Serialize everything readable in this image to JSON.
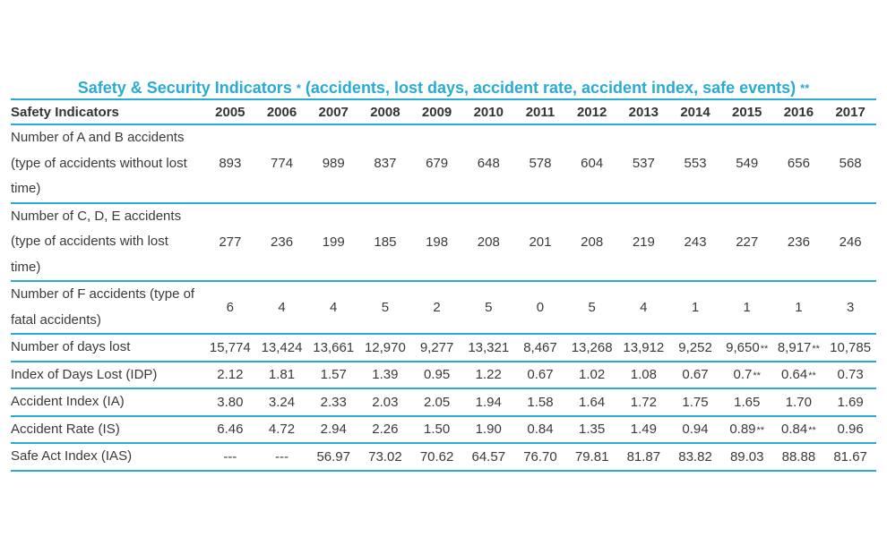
{
  "title": {
    "main": "Safety & Security Indicators",
    "star": "*",
    "sub": "(accidents, lost days, accident rate, accident index, safe events)",
    "stars": "**"
  },
  "table": {
    "header": [
      "Safety Indicators",
      "2005",
      "2006",
      "2007",
      "2008",
      "2009",
      "2010",
      "2011",
      "2012",
      "2013",
      "2014",
      "2015",
      "2016",
      "2017"
    ],
    "rows": [
      {
        "label": "Number of A and B accidents (type of accidents without lost time)",
        "values": [
          "893",
          "774",
          "989",
          "837",
          "679",
          "648",
          "578",
          "604",
          "537",
          "553",
          "549",
          "656",
          "568"
        ],
        "notes": [
          "",
          "",
          "",
          "",
          "",
          "",
          "",
          "",
          "",
          "",
          "",
          "",
          ""
        ]
      },
      {
        "label": "Number of C, D, E accidents (type of accidents with lost time)",
        "values": [
          "277",
          "236",
          "199",
          "185",
          "198",
          "208",
          "201",
          "208",
          "219",
          "243",
          "227",
          "236",
          "246"
        ],
        "notes": [
          "",
          "",
          "",
          "",
          "",
          "",
          "",
          "",
          "",
          "",
          "",
          "",
          ""
        ]
      },
      {
        "label": "Number of F accidents (type of fatal accidents)",
        "values": [
          "6",
          "4",
          "4",
          "5",
          "2",
          "5",
          "0",
          "5",
          "4",
          "1",
          "1",
          "1",
          "3"
        ],
        "notes": [
          "",
          "",
          "",
          "",
          "",
          "",
          "",
          "",
          "",
          "",
          "",
          "",
          ""
        ]
      },
      {
        "label": "Number of days lost",
        "values": [
          "15,774",
          "13,424",
          "13,661",
          "12,970",
          "9,277",
          "13,321",
          "8,467",
          "13,268",
          "13,912",
          "9,252",
          "9,650",
          "8,917",
          "10,785"
        ],
        "notes": [
          "",
          "",
          "",
          "",
          "",
          "",
          "",
          "",
          "",
          "",
          "**",
          "**",
          ""
        ]
      },
      {
        "label": "Index of Days Lost (IDP)",
        "values": [
          "2.12",
          "1.81",
          "1.57",
          "1.39",
          "0.95",
          "1.22",
          "0.67",
          "1.02",
          "1.08",
          "0.67",
          "0.7",
          "0.64",
          "0.73"
        ],
        "notes": [
          "",
          "",
          "",
          "",
          "",
          "",
          "",
          "",
          "",
          "",
          "**",
          "**",
          ""
        ]
      },
      {
        "label": "Accident Index (IA)",
        "values": [
          "3.80",
          "3.24",
          "2.33",
          "2.03",
          "2.05",
          "1.94",
          "1.58",
          "1.64",
          "1.72",
          "1.75",
          "1.65",
          "1.70",
          "1.69"
        ],
        "notes": [
          "",
          "",
          "",
          "",
          "",
          "",
          "",
          "",
          "",
          "",
          "",
          "",
          ""
        ]
      },
      {
        "label": "Accident Rate (IS)",
        "values": [
          "6.46",
          "4.72",
          "2.94",
          "2.26",
          "1.50",
          "1.90",
          "0.84",
          "1.35",
          "1.49",
          "0.94",
          "0.89",
          "0.84",
          "0.96"
        ],
        "notes": [
          "",
          "",
          "",
          "",
          "",
          "",
          "",
          "",
          "",
          "",
          "**",
          "**",
          ""
        ]
      },
      {
        "label": "Safe Act Index (IAS)",
        "values": [
          "---",
          "---",
          "56.97",
          "73.02",
          "70.62",
          "64.57",
          "76.70",
          "79.81",
          "81.87",
          "83.82",
          "89.03",
          "88.88",
          "81.67"
        ],
        "notes": [
          "",
          "",
          "",
          "",
          "",
          "",
          "",
          "",
          "",
          "",
          "",
          "",
          ""
        ]
      }
    ]
  },
  "colors": {
    "accent": "#29abd4",
    "text": "#3a3a3a"
  }
}
